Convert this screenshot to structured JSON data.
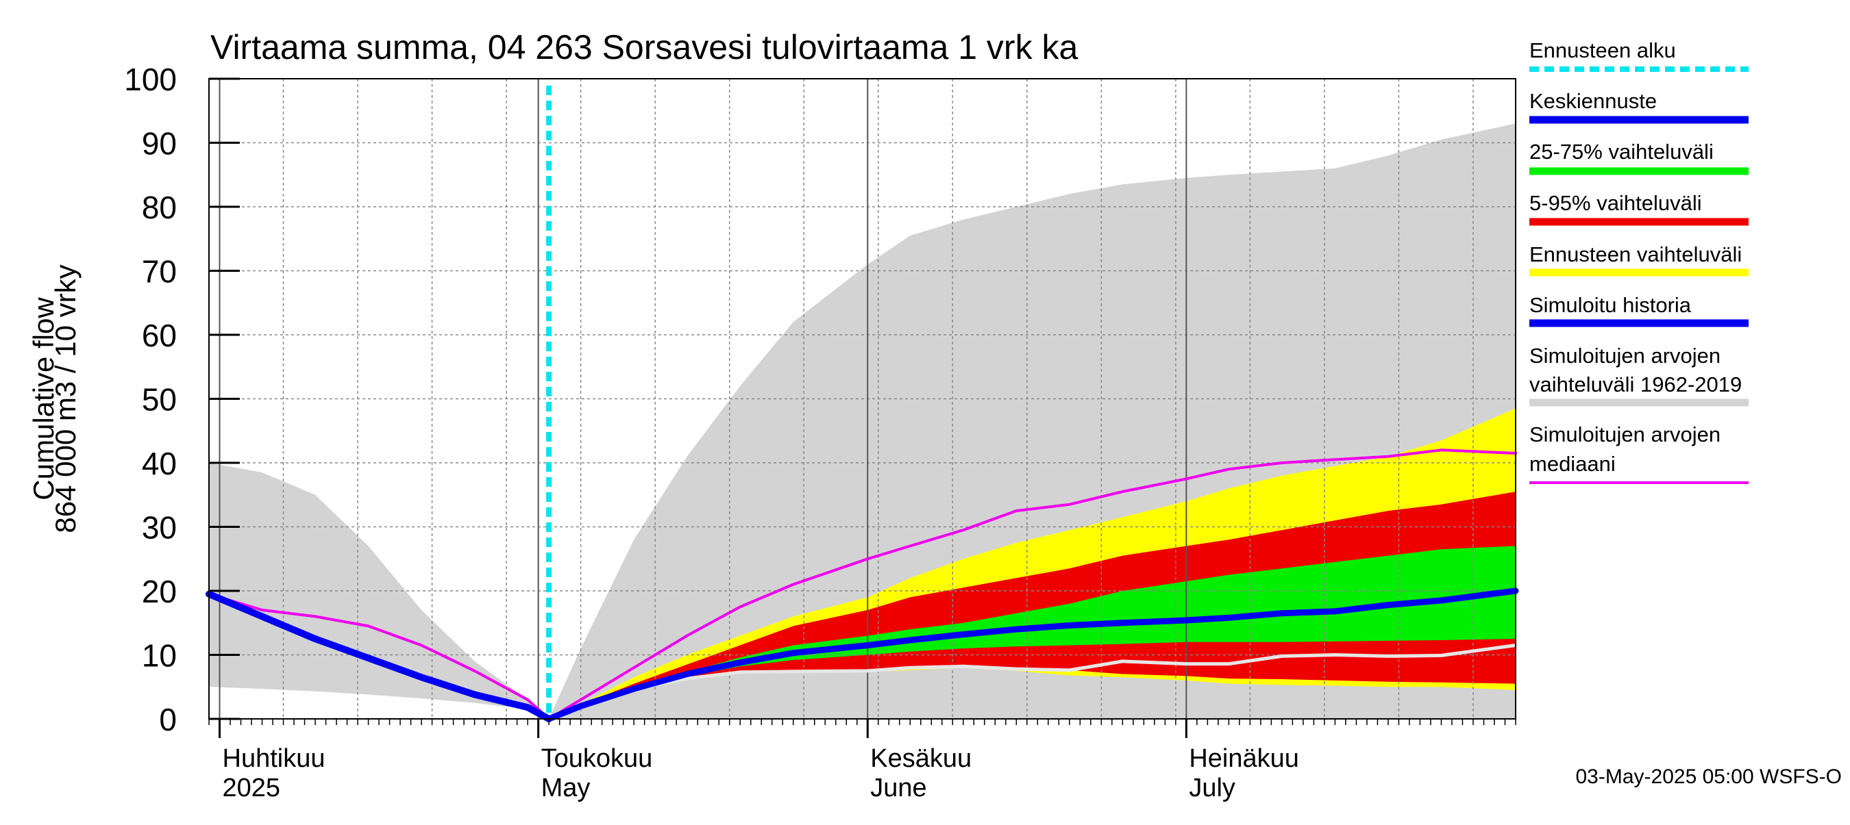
{
  "chart_data": {
    "type": "area",
    "title": "Virtaama summa, 04 263 Sorsavesi tulovirtaama 1 vrk ka",
    "ylabel_lines": [
      "Cumulative flow",
      "864 000 m3 / 10 vrky"
    ],
    "ylim": [
      0,
      100
    ],
    "y_ticks": [
      0,
      10,
      20,
      30,
      40,
      50,
      60,
      70,
      80,
      90,
      100
    ],
    "xlim": [
      "2025-03-31",
      "2025-08-01"
    ],
    "forecast_start": "2025-05-02",
    "grid": true,
    "x_month_labels": [
      {
        "date": "2025-04-01",
        "line1": "Huhtikuu",
        "line2": "2025"
      },
      {
        "date": "2025-05-01",
        "line1": "Toukokuu",
        "line2": "May"
      },
      {
        "date": "2025-06-01",
        "line1": "Kesäkuu",
        "line2": "June"
      },
      {
        "date": "2025-07-01",
        "line1": "Heinäkuu",
        "line2": "July"
      }
    ],
    "legend": [
      {
        "key": "forecast_start",
        "label": "Ennusteen alku",
        "color": "#00e5ee",
        "style": "dashed"
      },
      {
        "key": "median_forecast",
        "label": "Keskiennuste",
        "color": "#0000ee",
        "style": "solid"
      },
      {
        "key": "band_25_75",
        "label": "25-75% vaihteluväli",
        "color": "#00ee00",
        "style": "solid"
      },
      {
        "key": "band_5_95",
        "label": "5-95% vaihteluväli",
        "color": "#ee0000",
        "style": "solid"
      },
      {
        "key": "band_forecast",
        "label": "Ennusteen vaihteluväli",
        "color": "#ffff00",
        "style": "solid"
      },
      {
        "key": "sim_history",
        "label": "Simuloitu historia",
        "color": "#0000ee",
        "style": "solid"
      },
      {
        "key": "hist_range",
        "label": "Simuloitujen arvojen vaihteluväli 1962-2019",
        "lines": [
          "Simuloitujen arvojen",
          "vaihteluväli 1962-2019"
        ],
        "color": "#d3d3d3",
        "style": "solid"
      },
      {
        "key": "hist_median",
        "label": "Simuloitujen arvojen mediaani",
        "lines": [
          "Simuloitujen arvojen",
          "mediaani"
        ],
        "color": "#ee00ee",
        "style": "solid"
      }
    ],
    "timestamp": "03-May-2025 05:00 WSFS-O",
    "series": {
      "hist_range": {
        "x": [
          "2025-03-31",
          "2025-04-05",
          "2025-04-10",
          "2025-04-15",
          "2025-04-20",
          "2025-04-25",
          "2025-04-30",
          "2025-05-02",
          "2025-05-05",
          "2025-05-10",
          "2025-05-15",
          "2025-05-20",
          "2025-05-25",
          "2025-06-01",
          "2025-06-05",
          "2025-06-10",
          "2025-06-15",
          "2025-06-20",
          "2025-06-25",
          "2025-07-01",
          "2025-07-05",
          "2025-07-10",
          "2025-07-15",
          "2025-07-20",
          "2025-07-25",
          "2025-08-01"
        ],
        "upper": [
          40,
          38.5,
          35,
          27,
          17,
          9,
          3,
          0,
          11,
          28,
          41,
          52,
          62,
          71,
          75.5,
          78,
          80,
          82,
          83.5,
          84.5,
          85,
          85.5,
          86,
          88,
          90.5,
          93
        ],
        "lower": [
          5,
          4.7,
          4.3,
          3.8,
          3.2,
          2.5,
          1.5,
          0,
          0,
          0,
          0,
          0,
          0,
          0,
          0,
          0,
          0,
          0,
          0,
          0,
          0,
          0,
          0,
          0,
          0,
          0
        ]
      },
      "band_forecast": {
        "x": [
          "2025-05-02",
          "2025-05-05",
          "2025-05-10",
          "2025-05-15",
          "2025-05-20",
          "2025-05-25",
          "2025-06-01",
          "2025-06-05",
          "2025-06-10",
          "2025-06-15",
          "2025-06-20",
          "2025-06-25",
          "2025-07-01",
          "2025-07-05",
          "2025-07-10",
          "2025-07-15",
          "2025-07-20",
          "2025-07-25",
          "2025-08-01"
        ],
        "upper": [
          0,
          2.3,
          6.5,
          10,
          13,
          16,
          19,
          22,
          25,
          27.5,
          29.5,
          31.5,
          34,
          36,
          38,
          39.5,
          41,
          43.5,
          48.5
        ],
        "lower": [
          0,
          1.8,
          4.5,
          6.5,
          7.2,
          7.3,
          7.3,
          7.6,
          8,
          7.5,
          6.8,
          6.5,
          6,
          5.5,
          5.3,
          5.2,
          5,
          5,
          4.5
        ]
      },
      "band_5_95": {
        "x": [
          "2025-05-02",
          "2025-05-05",
          "2025-05-10",
          "2025-05-15",
          "2025-05-20",
          "2025-05-25",
          "2025-06-01",
          "2025-06-05",
          "2025-06-10",
          "2025-06-15",
          "2025-06-20",
          "2025-06-25",
          "2025-07-01",
          "2025-07-05",
          "2025-07-10",
          "2025-07-15",
          "2025-07-20",
          "2025-07-25",
          "2025-08-01"
        ],
        "upper": [
          0,
          2.2,
          5.5,
          8.5,
          11.5,
          14.5,
          17,
          19,
          20.5,
          22,
          23.5,
          25.5,
          27,
          28,
          29.5,
          31,
          32.5,
          33.5,
          35.5
        ],
        "lower": [
          0,
          1.9,
          4.5,
          6.2,
          7.1,
          7.3,
          7.5,
          7.8,
          8.2,
          8,
          7.6,
          7,
          6.7,
          6.3,
          6.2,
          6,
          5.8,
          5.7,
          5.5
        ]
      },
      "band_25_75": {
        "x": [
          "2025-05-02",
          "2025-05-05",
          "2025-05-10",
          "2025-05-15",
          "2025-05-20",
          "2025-05-25",
          "2025-06-01",
          "2025-06-05",
          "2025-06-10",
          "2025-06-15",
          "2025-06-20",
          "2025-06-25",
          "2025-07-01",
          "2025-07-05",
          "2025-07-10",
          "2025-07-15",
          "2025-07-20",
          "2025-07-25",
          "2025-08-01"
        ],
        "upper": [
          0,
          2.1,
          4.8,
          7.3,
          9.6,
          11.5,
          13,
          14,
          15,
          16.5,
          18,
          20,
          21.5,
          22.5,
          23.5,
          24.5,
          25.5,
          26.5,
          27
        ],
        "lower": [
          0,
          2,
          4.5,
          6.6,
          8.2,
          9.2,
          10,
          10.5,
          11,
          11.3,
          11.5,
          11.7,
          12,
          12,
          12,
          12.1,
          12.2,
          12.3,
          12.5
        ]
      },
      "median_forecast": {
        "x": [
          "2025-05-02",
          "2025-05-05",
          "2025-05-10",
          "2025-05-15",
          "2025-05-20",
          "2025-05-25",
          "2025-06-01",
          "2025-06-05",
          "2025-06-10",
          "2025-06-15",
          "2025-06-20",
          "2025-06-25",
          "2025-07-01",
          "2025-07-05",
          "2025-07-10",
          "2025-07-15",
          "2025-07-20",
          "2025-07-25",
          "2025-08-01"
        ],
        "values": [
          0,
          2,
          4.7,
          7,
          8.8,
          10.3,
          11.5,
          12.3,
          13.2,
          14,
          14.6,
          15,
          15.4,
          15.8,
          16.5,
          16.8,
          17.8,
          18.5,
          20
        ]
      },
      "sim_history": {
        "x": [
          "2025-03-31",
          "2025-04-05",
          "2025-04-10",
          "2025-04-15",
          "2025-04-20",
          "2025-04-25",
          "2025-04-30",
          "2025-05-02"
        ],
        "values": [
          19.5,
          16,
          12.5,
          9.5,
          6.5,
          3.8,
          1.8,
          0
        ]
      },
      "hist_median": {
        "x": [
          "2025-03-31",
          "2025-04-05",
          "2025-04-10",
          "2025-04-15",
          "2025-04-20",
          "2025-04-25",
          "2025-04-30",
          "2025-05-02",
          "2025-05-05",
          "2025-05-10",
          "2025-05-15",
          "2025-05-20",
          "2025-05-25",
          "2025-06-01",
          "2025-06-05",
          "2025-06-10",
          "2025-06-15",
          "2025-06-20",
          "2025-06-25",
          "2025-07-01",
          "2025-07-05",
          "2025-07-10",
          "2025-07-15",
          "2025-07-20",
          "2025-07-25",
          "2025-08-01"
        ],
        "values": [
          19.5,
          17,
          16,
          14.5,
          11.5,
          7.5,
          3,
          0,
          3,
          8,
          13,
          17.5,
          21,
          25,
          27,
          29.5,
          32.5,
          33.5,
          35.5,
          37.5,
          39,
          40,
          40.5,
          41,
          42,
          41.5
        ]
      },
      "sim_median_future": {
        "x": [
          "2025-05-02",
          "2025-05-05",
          "2025-05-10",
          "2025-05-15",
          "2025-05-20",
          "2025-05-25",
          "2025-06-01",
          "2025-06-05",
          "2025-06-10",
          "2025-06-15",
          "2025-06-20",
          "2025-06-25",
          "2025-07-01",
          "2025-07-05",
          "2025-07-10",
          "2025-07-15",
          "2025-07-20",
          "2025-07-25",
          "2025-08-01"
        ],
        "values": [
          0,
          2,
          4.6,
          6.3,
          7.3,
          7.4,
          7.5,
          8,
          8.2,
          7.8,
          7.6,
          9,
          8.6,
          8.6,
          9.8,
          10,
          9.8,
          9.9,
          11.5
        ],
        "color": "#e6e6e6"
      }
    }
  }
}
